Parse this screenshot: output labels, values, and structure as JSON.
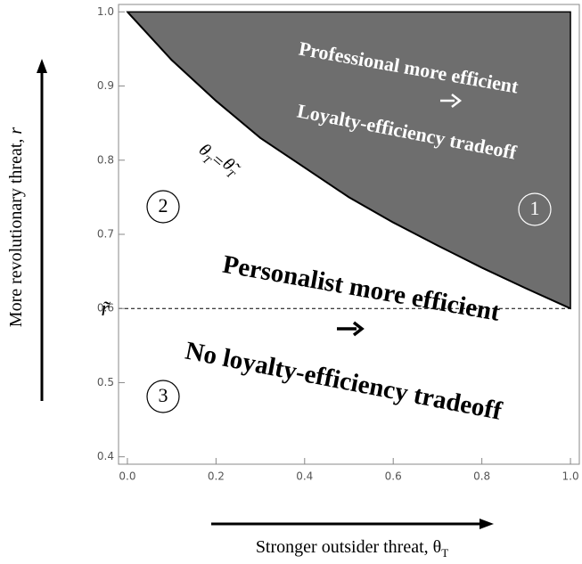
{
  "chart_data": {
    "type": "region",
    "x": [
      0,
      0.1,
      0.2,
      0.3,
      0.4,
      0.5,
      0.6,
      0.7,
      0.8,
      0.9,
      1.0
    ],
    "series": [
      {
        "color": "#6e6e6e",
        "values": [
          1.0,
          0.935,
          0.88,
          0.83,
          0.79,
          0.75,
          0.716,
          0.685,
          0.655,
          0.627,
          0.6
        ]
      }
    ],
    "threshold": 0.6,
    "threshold_label": "r̃",
    "curve_label": [
      "θ",
      "T",
      "=",
      "θ̃",
      "T"
    ],
    "xlabel": [
      "Stronger outsider threat, θ",
      "T"
    ],
    "ylabel": [
      "More revolutionary threat, ",
      "r"
    ],
    "annotations": [
      "Professional more efficient",
      "Loyalty-efficiency tradeoff",
      "Personalist more efficient",
      "No loyalty-efficiency tradeoff"
    ],
    "region_numbers": [
      "1",
      "2",
      "3"
    ],
    "xlim": [
      -0.02,
      1.02
    ],
    "ylim": [
      0.39,
      1.01
    ],
    "xticks": [
      {
        "value": 0,
        "label": "0.0"
      },
      0.2,
      0.4,
      0.6,
      0.8,
      {
        "value": 1,
        "label": "1.0"
      }
    ],
    "yticks": [
      0.4,
      0.5,
      0.6,
      0.7,
      0.8,
      0.9,
      {
        "value": 1,
        "label": "1.0"
      }
    ]
  }
}
